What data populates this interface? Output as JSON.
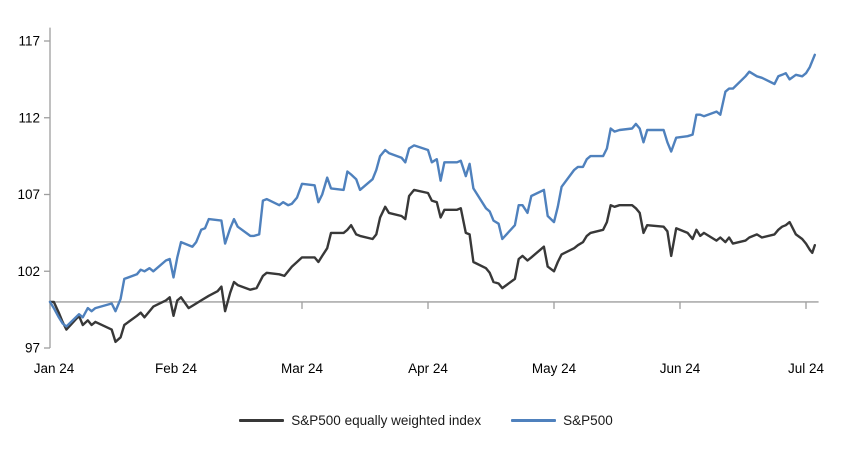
{
  "page": {
    "background": "#ffffff"
  },
  "legend": {
    "items": [
      {
        "id": "sp500-equal-weight",
        "label": "S&P500 equally weighted index",
        "color": "#383838"
      },
      {
        "id": "sp500",
        "label": "S&P500",
        "color": "#4f81bd"
      }
    ]
  },
  "chart_data": {
    "type": "line",
    "title": "",
    "xlabel": "",
    "ylabel": "",
    "x_unit": "months since 1 Jan 2024 (0 = Jan 1, 1 = Feb 1, ... 6 = Jul 1)",
    "y_unit": "index level, 100 = start of 2024",
    "x_tick_labels": [
      "Jan 24",
      "Feb 24",
      "Mar 24",
      "Apr 24",
      "May 24",
      "Jun 24",
      "Jul 24"
    ],
    "x_tick_positions": [
      0,
      1,
      2,
      3,
      4,
      5,
      6
    ],
    "y_ticks": [
      97,
      102,
      107,
      112,
      117
    ],
    "x_range": [
      0,
      6.1
    ],
    "y_range": [
      97,
      118
    ],
    "baseline_value": 100,
    "grid": false,
    "legend_position": "bottom",
    "axis_color": "#9e9e9e",
    "text_color": "#000000",
    "series": [
      {
        "name": "S&P500 equally weighted index",
        "color": "#383838",
        "width": 2.4,
        "points": [
          [
            0.0,
            100.0
          ],
          [
            0.03,
            100.0
          ],
          [
            0.07,
            99.3
          ],
          [
            0.1,
            98.7
          ],
          [
            0.13,
            98.2
          ],
          [
            0.23,
            99.1
          ],
          [
            0.26,
            98.5
          ],
          [
            0.3,
            98.8
          ],
          [
            0.33,
            98.5
          ],
          [
            0.36,
            98.7
          ],
          [
            0.49,
            98.2
          ],
          [
            0.52,
            97.4
          ],
          [
            0.56,
            97.7
          ],
          [
            0.59,
            98.5
          ],
          [
            0.69,
            99.1
          ],
          [
            0.72,
            99.3
          ],
          [
            0.75,
            99.0
          ],
          [
            0.79,
            99.4
          ],
          [
            0.82,
            99.7
          ],
          [
            0.92,
            100.1
          ],
          [
            0.95,
            100.3
          ],
          [
            0.98,
            99.1
          ],
          [
            1.01,
            100.1
          ],
          [
            1.04,
            100.3
          ],
          [
            1.1,
            99.6
          ],
          [
            1.16,
            99.9
          ],
          [
            1.2,
            100.1
          ],
          [
            1.26,
            100.4
          ],
          [
            1.33,
            100.7
          ],
          [
            1.36,
            101.0
          ],
          [
            1.39,
            99.4
          ],
          [
            1.43,
            100.6
          ],
          [
            1.46,
            101.3
          ],
          [
            1.49,
            101.1
          ],
          [
            1.59,
            100.8
          ],
          [
            1.64,
            100.9
          ],
          [
            1.69,
            101.7
          ],
          [
            1.72,
            101.9
          ],
          [
            1.82,
            101.8
          ],
          [
            1.86,
            101.7
          ],
          [
            1.92,
            102.3
          ],
          [
            1.96,
            102.6
          ],
          [
            2.0,
            102.9
          ],
          [
            2.1,
            102.9
          ],
          [
            2.13,
            102.6
          ],
          [
            2.16,
            103.0
          ],
          [
            2.2,
            103.5
          ],
          [
            2.23,
            104.5
          ],
          [
            2.33,
            104.5
          ],
          [
            2.36,
            104.7
          ],
          [
            2.39,
            105.0
          ],
          [
            2.43,
            104.4
          ],
          [
            2.46,
            104.3
          ],
          [
            2.56,
            104.1
          ],
          [
            2.59,
            104.4
          ],
          [
            2.62,
            105.5
          ],
          [
            2.66,
            106.2
          ],
          [
            2.69,
            105.8
          ],
          [
            2.79,
            105.6
          ],
          [
            2.82,
            105.4
          ],
          [
            2.85,
            106.9
          ],
          [
            2.89,
            107.3
          ],
          [
            3.0,
            107.1
          ],
          [
            3.03,
            106.6
          ],
          [
            3.07,
            106.5
          ],
          [
            3.1,
            105.5
          ],
          [
            3.13,
            106.0
          ],
          [
            3.23,
            106.0
          ],
          [
            3.26,
            106.1
          ],
          [
            3.3,
            104.5
          ],
          [
            3.33,
            104.4
          ],
          [
            3.36,
            102.6
          ],
          [
            3.46,
            102.2
          ],
          [
            3.49,
            101.9
          ],
          [
            3.52,
            101.3
          ],
          [
            3.56,
            101.2
          ],
          [
            3.59,
            100.9
          ],
          [
            3.69,
            101.5
          ],
          [
            3.72,
            102.8
          ],
          [
            3.75,
            103.0
          ],
          [
            3.79,
            102.7
          ],
          [
            3.82,
            102.9
          ],
          [
            3.92,
            103.6
          ],
          [
            3.95,
            102.3
          ],
          [
            4.0,
            102.0
          ],
          [
            4.03,
            102.6
          ],
          [
            4.06,
            103.1
          ],
          [
            4.16,
            103.5
          ],
          [
            4.19,
            103.7
          ],
          [
            4.23,
            103.9
          ],
          [
            4.26,
            104.3
          ],
          [
            4.29,
            104.5
          ],
          [
            4.39,
            104.7
          ],
          [
            4.42,
            105.2
          ],
          [
            4.45,
            106.3
          ],
          [
            4.48,
            106.2
          ],
          [
            4.52,
            106.3
          ],
          [
            4.62,
            106.3
          ],
          [
            4.65,
            106.1
          ],
          [
            4.68,
            105.8
          ],
          [
            4.71,
            104.5
          ],
          [
            4.74,
            105.0
          ],
          [
            4.87,
            104.9
          ],
          [
            4.9,
            104.6
          ],
          [
            4.93,
            103.0
          ],
          [
            4.97,
            104.8
          ],
          [
            5.06,
            104.5
          ],
          [
            5.1,
            104.1
          ],
          [
            5.13,
            104.7
          ],
          [
            5.16,
            104.3
          ],
          [
            5.19,
            104.5
          ],
          [
            5.29,
            104.0
          ],
          [
            5.32,
            104.2
          ],
          [
            5.36,
            103.9
          ],
          [
            5.39,
            104.2
          ],
          [
            5.42,
            103.8
          ],
          [
            5.52,
            104.0
          ],
          [
            5.55,
            104.2
          ],
          [
            5.61,
            104.4
          ],
          [
            5.65,
            104.2
          ],
          [
            5.75,
            104.4
          ],
          [
            5.78,
            104.7
          ],
          [
            5.81,
            104.9
          ],
          [
            5.84,
            105.0
          ],
          [
            5.87,
            105.2
          ],
          [
            5.92,
            104.4
          ],
          [
            5.97,
            104.1
          ],
          [
            6.0,
            103.8
          ],
          [
            6.03,
            103.4
          ],
          [
            6.05,
            103.2
          ],
          [
            6.07,
            103.7
          ]
        ]
      },
      {
        "name": "S&P500",
        "color": "#4f81bd",
        "width": 2.4,
        "points": [
          [
            0.0,
            100.0
          ],
          [
            0.03,
            99.6
          ],
          [
            0.07,
            99.0
          ],
          [
            0.1,
            98.6
          ],
          [
            0.13,
            98.4
          ],
          [
            0.23,
            99.2
          ],
          [
            0.26,
            99.0
          ],
          [
            0.3,
            99.6
          ],
          [
            0.33,
            99.4
          ],
          [
            0.36,
            99.6
          ],
          [
            0.49,
            99.9
          ],
          [
            0.52,
            99.4
          ],
          [
            0.56,
            100.2
          ],
          [
            0.59,
            101.5
          ],
          [
            0.69,
            101.8
          ],
          [
            0.72,
            102.1
          ],
          [
            0.75,
            102.0
          ],
          [
            0.79,
            102.2
          ],
          [
            0.82,
            102.0
          ],
          [
            0.92,
            102.7
          ],
          [
            0.95,
            102.8
          ],
          [
            0.98,
            101.6
          ],
          [
            1.01,
            102.9
          ],
          [
            1.04,
            103.9
          ],
          [
            1.13,
            103.6
          ],
          [
            1.16,
            103.9
          ],
          [
            1.2,
            104.7
          ],
          [
            1.23,
            104.8
          ],
          [
            1.26,
            105.4
          ],
          [
            1.36,
            105.3
          ],
          [
            1.39,
            103.8
          ],
          [
            1.43,
            104.8
          ],
          [
            1.46,
            105.4
          ],
          [
            1.49,
            104.9
          ],
          [
            1.59,
            104.3
          ],
          [
            1.62,
            104.3
          ],
          [
            1.66,
            104.4
          ],
          [
            1.69,
            106.6
          ],
          [
            1.72,
            106.7
          ],
          [
            1.82,
            106.3
          ],
          [
            1.85,
            106.5
          ],
          [
            1.89,
            106.3
          ],
          [
            1.92,
            106.4
          ],
          [
            1.96,
            106.8
          ],
          [
            2.0,
            107.7
          ],
          [
            2.1,
            107.6
          ],
          [
            2.13,
            106.5
          ],
          [
            2.16,
            107.0
          ],
          [
            2.2,
            108.1
          ],
          [
            2.23,
            107.4
          ],
          [
            2.33,
            107.3
          ],
          [
            2.36,
            108.5
          ],
          [
            2.39,
            108.3
          ],
          [
            2.43,
            108.0
          ],
          [
            2.46,
            107.3
          ],
          [
            2.56,
            108.0
          ],
          [
            2.59,
            108.6
          ],
          [
            2.62,
            109.5
          ],
          [
            2.66,
            109.9
          ],
          [
            2.69,
            109.7
          ],
          [
            2.79,
            109.4
          ],
          [
            2.82,
            109.1
          ],
          [
            2.85,
            110.0
          ],
          [
            2.89,
            110.2
          ],
          [
            3.0,
            109.9
          ],
          [
            3.03,
            109.1
          ],
          [
            3.07,
            109.3
          ],
          [
            3.1,
            107.9
          ],
          [
            3.13,
            109.1
          ],
          [
            3.23,
            109.1
          ],
          [
            3.26,
            109.2
          ],
          [
            3.3,
            108.2
          ],
          [
            3.33,
            109.0
          ],
          [
            3.36,
            107.4
          ],
          [
            3.46,
            106.1
          ],
          [
            3.49,
            105.9
          ],
          [
            3.52,
            105.3
          ],
          [
            3.56,
            105.1
          ],
          [
            3.59,
            104.1
          ],
          [
            3.69,
            105.0
          ],
          [
            3.72,
            106.3
          ],
          [
            3.75,
            106.3
          ],
          [
            3.79,
            105.8
          ],
          [
            3.82,
            106.9
          ],
          [
            3.92,
            107.3
          ],
          [
            3.95,
            105.6
          ],
          [
            4.0,
            105.2
          ],
          [
            4.03,
            106.2
          ],
          [
            4.06,
            107.5
          ],
          [
            4.16,
            108.6
          ],
          [
            4.19,
            108.8
          ],
          [
            4.23,
            108.8
          ],
          [
            4.26,
            109.3
          ],
          [
            4.29,
            109.5
          ],
          [
            4.39,
            109.5
          ],
          [
            4.42,
            110.0
          ],
          [
            4.45,
            111.3
          ],
          [
            4.48,
            111.1
          ],
          [
            4.52,
            111.2
          ],
          [
            4.62,
            111.3
          ],
          [
            4.65,
            111.6
          ],
          [
            4.68,
            111.3
          ],
          [
            4.71,
            110.4
          ],
          [
            4.74,
            111.2
          ],
          [
            4.87,
            111.2
          ],
          [
            4.9,
            110.4
          ],
          [
            4.93,
            109.8
          ],
          [
            4.97,
            110.7
          ],
          [
            5.06,
            110.8
          ],
          [
            5.1,
            110.9
          ],
          [
            5.13,
            112.2
          ],
          [
            5.16,
            112.2
          ],
          [
            5.19,
            112.1
          ],
          [
            5.29,
            112.4
          ],
          [
            5.32,
            112.2
          ],
          [
            5.36,
            113.7
          ],
          [
            5.39,
            113.9
          ],
          [
            5.42,
            113.9
          ],
          [
            5.52,
            114.7
          ],
          [
            5.55,
            115.0
          ],
          [
            5.61,
            114.7
          ],
          [
            5.65,
            114.6
          ],
          [
            5.75,
            114.2
          ],
          [
            5.78,
            114.7
          ],
          [
            5.81,
            114.8
          ],
          [
            5.84,
            114.9
          ],
          [
            5.87,
            114.5
          ],
          [
            5.92,
            114.8
          ],
          [
            5.97,
            114.7
          ],
          [
            6.0,
            114.9
          ],
          [
            6.03,
            115.3
          ],
          [
            6.07,
            116.1
          ]
        ]
      }
    ]
  }
}
